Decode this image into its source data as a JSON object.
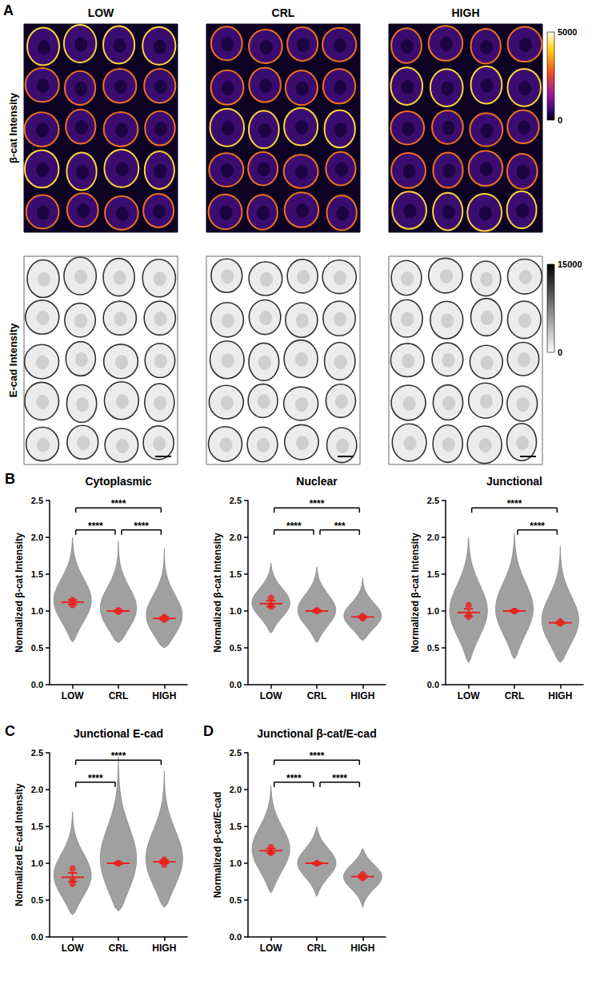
{
  "chart_data": [
    {
      "panel": "A",
      "type": "image",
      "columns": [
        "LOW",
        "CRL",
        "HIGH"
      ],
      "rows": [
        {
          "label": "β-cat Intensity",
          "colorbar": {
            "range": [
              0,
              5000
            ],
            "ticks": [
              0,
              5000
            ]
          }
        },
        {
          "label": "E-cad Intensity",
          "colorbar": {
            "range": [
              0,
              15000
            ],
            "ticks": [
              0,
              15000
            ]
          }
        }
      ]
    },
    {
      "panel": "B",
      "type": "scatter",
      "title": "Cytoplasmic",
      "y_label": "Normalized β-cat Intensity",
      "categories": [
        "LOW",
        "CRL",
        "HIGH"
      ],
      "values": [
        1.12,
        1.0,
        0.9
      ],
      "error": [
        0.03,
        0.01,
        0.02
      ],
      "replicates": [
        [
          1.12,
          1.15,
          1.08
        ],
        [
          1.0,
          1.01,
          0.99
        ],
        [
          0.88,
          0.92,
          0.91
        ]
      ],
      "spread": [
        [
          0.58,
          2.0
        ],
        [
          0.57,
          1.95
        ],
        [
          0.5,
          1.85
        ]
      ],
      "comparisons": [
        {
          "pair": [
            "LOW",
            "CRL"
          ],
          "label": "****"
        },
        {
          "pair": [
            "CRL",
            "HIGH"
          ],
          "label": "****"
        },
        {
          "pair": [
            "LOW",
            "HIGH"
          ],
          "label": "****"
        }
      ],
      "color": "#e8231f",
      "ylim": [
        0,
        2.5
      ],
      "yticks": [
        {
          "value": 0,
          "label": "0.0"
        },
        {
          "value": 0.5,
          "label": "0.5"
        },
        {
          "value": 1,
          "label": "1.0"
        },
        {
          "value": 1.5,
          "label": "1.5"
        },
        {
          "value": 2,
          "label": "2.0"
        },
        {
          "value": 2.5,
          "label": "2.5"
        }
      ]
    },
    {
      "panel": "B",
      "type": "scatter",
      "title": "Nuclear",
      "y_label": "Normalized β-cat Intensity",
      "categories": [
        "LOW",
        "CRL",
        "HIGH"
      ],
      "values": [
        1.1,
        1.0,
        0.92
      ],
      "error": [
        0.04,
        0.01,
        0.01
      ],
      "replicates": [
        [
          1.18,
          1.08,
          1.06
        ],
        [
          1.0,
          1.0,
          1.01
        ],
        [
          0.9,
          0.93,
          0.92
        ]
      ],
      "spread": [
        [
          0.7,
          1.65
        ],
        [
          0.57,
          1.6
        ],
        [
          0.6,
          1.45
        ]
      ],
      "comparisons": [
        {
          "pair": [
            "LOW",
            "CRL"
          ],
          "label": "****"
        },
        {
          "pair": [
            "CRL",
            "HIGH"
          ],
          "label": "***"
        },
        {
          "pair": [
            "LOW",
            "HIGH"
          ],
          "label": "****"
        }
      ],
      "color": "#e8231f",
      "ylim": [
        0,
        2.5
      ],
      "yticks": [
        {
          "value": 0,
          "label": "0.0"
        },
        {
          "value": 0.5,
          "label": "0.5"
        },
        {
          "value": 1,
          "label": "1.0"
        },
        {
          "value": 1.5,
          "label": "1.5"
        },
        {
          "value": 2,
          "label": "2.0"
        },
        {
          "value": 2.5,
          "label": "2.5"
        }
      ]
    },
    {
      "panel": "B",
      "type": "scatter",
      "title": "Junctional",
      "y_label": "Normalized β-cat Intensity",
      "categories": [
        "LOW",
        "CRL",
        "HIGH"
      ],
      "values": [
        0.98,
        1.0,
        0.84
      ],
      "error": [
        0.05,
        0.01,
        0.01
      ],
      "replicates": [
        [
          1.08,
          0.95,
          0.92
        ],
        [
          1.0,
          1.0,
          1.0
        ],
        [
          0.83,
          0.86,
          0.84
        ]
      ],
      "spread": [
        [
          0.3,
          2.0
        ],
        [
          0.35,
          2.05
        ],
        [
          0.3,
          1.88
        ]
      ],
      "comparisons": [
        {
          "pair": [
            "CRL",
            "HIGH"
          ],
          "label": "****"
        },
        {
          "pair": [
            "LOW",
            "HIGH"
          ],
          "label": "****"
        }
      ],
      "color": "#e8231f",
      "ylim": [
        0,
        2.5
      ],
      "yticks": [
        {
          "value": 0,
          "label": "0.0"
        },
        {
          "value": 0.5,
          "label": "0.5"
        },
        {
          "value": 1,
          "label": "1.0"
        },
        {
          "value": 1.5,
          "label": "1.5"
        },
        {
          "value": 2,
          "label": "2.0"
        },
        {
          "value": 2.5,
          "label": "2.5"
        }
      ]
    },
    {
      "panel": "C",
      "type": "scatter",
      "title": "Junctional E-cad",
      "y_label": "Normalized E-cad Intensity",
      "categories": [
        "LOW",
        "CRL",
        "HIGH"
      ],
      "values": [
        0.81,
        1.0,
        1.02
      ],
      "error": [
        0.06,
        0.01,
        0.02
      ],
      "replicates": [
        [
          0.93,
          0.78,
          0.72
        ],
        [
          1.0,
          1.0,
          1.0
        ],
        [
          1.05,
          0.98,
          1.02
        ]
      ],
      "spread": [
        [
          0.3,
          1.7
        ],
        [
          0.35,
          2.45
        ],
        [
          0.4,
          2.25
        ]
      ],
      "comparisons": [
        {
          "pair": [
            "LOW",
            "CRL"
          ],
          "label": "****"
        },
        {
          "pair": [
            "LOW",
            "HIGH"
          ],
          "label": "****"
        }
      ],
      "color": "#e8231f",
      "ylim": [
        0,
        2.5
      ],
      "yticks": [
        {
          "value": 0,
          "label": "0.0"
        },
        {
          "value": 0.5,
          "label": "0.5"
        },
        {
          "value": 1,
          "label": "1.0"
        },
        {
          "value": 1.5,
          "label": "1.5"
        },
        {
          "value": 2,
          "label": "2.0"
        },
        {
          "value": 2.5,
          "label": "2.5"
        }
      ]
    },
    {
      "panel": "D",
      "type": "scatter",
      "title": "Junctional β-cat/E-cad",
      "y_label": "Normalized β-cat/E-cad",
      "categories": [
        "LOW",
        "CRL",
        "HIGH"
      ],
      "values": [
        1.17,
        1.0,
        0.82
      ],
      "error": [
        0.03,
        0.01,
        0.02
      ],
      "replicates": [
        [
          1.22,
          1.15,
          1.14
        ],
        [
          1.0,
          1.0,
          1.0
        ],
        [
          0.85,
          0.8,
          0.81
        ]
      ],
      "spread": [
        [
          0.6,
          2.05
        ],
        [
          0.55,
          1.5
        ],
        [
          0.4,
          1.2
        ]
      ],
      "comparisons": [
        {
          "pair": [
            "LOW",
            "CRL"
          ],
          "label": "****"
        },
        {
          "pair": [
            "CRL",
            "HIGH"
          ],
          "label": "****"
        },
        {
          "pair": [
            "LOW",
            "HIGH"
          ],
          "label": "****"
        }
      ],
      "color": "#e8231f",
      "ylim": [
        0,
        2.5
      ],
      "yticks": [
        {
          "value": 0,
          "label": "0.0"
        },
        {
          "value": 0.5,
          "label": "0.5"
        },
        {
          "value": 1,
          "label": "1.0"
        },
        {
          "value": 1.5,
          "label": "1.5"
        },
        {
          "value": 2,
          "label": "2.0"
        },
        {
          "value": 2.5,
          "label": "2.5"
        }
      ]
    }
  ]
}
